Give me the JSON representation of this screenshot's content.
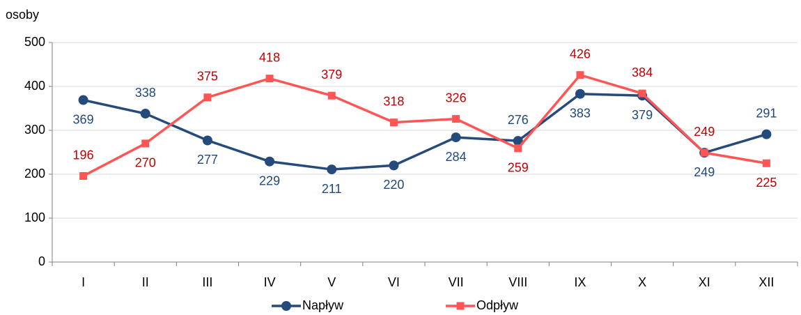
{
  "chart_data": {
    "type": "line",
    "y_label": "osoby",
    "categories": [
      "I",
      "II",
      "III",
      "IV",
      "V",
      "VI",
      "VII",
      "VIII",
      "IX",
      "X",
      "XI",
      "XII"
    ],
    "series": [
      {
        "name": "Napływ",
        "color": "#254a7c",
        "label_color": "#1f497d",
        "marker": "circle",
        "values": [
          369,
          338,
          277,
          229,
          211,
          220,
          284,
          276,
          383,
          379,
          249,
          291
        ]
      },
      {
        "name": "Odpływ",
        "color": "#ff5555",
        "label_color": "#c00000",
        "marker": "square",
        "values": [
          196,
          270,
          375,
          418,
          379,
          318,
          326,
          259,
          426,
          384,
          249,
          225
        ]
      }
    ],
    "ylim": [
      0,
      500
    ],
    "yticks": [
      0,
      100,
      200,
      300,
      400,
      500
    ],
    "grid": true,
    "legend": "bottom"
  }
}
